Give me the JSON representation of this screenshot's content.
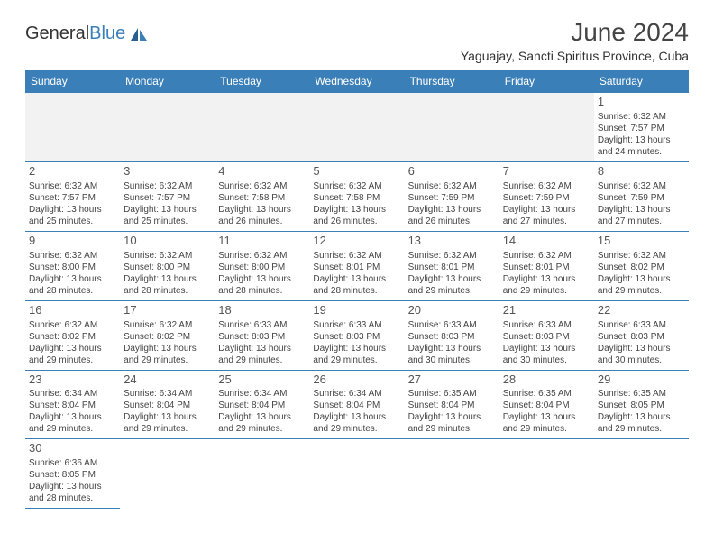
{
  "logo": {
    "name1": "General",
    "name2": "Blue"
  },
  "title": "June 2024",
  "location": "Yaguajay, Sancti Spiritus Province, Cuba",
  "dayHeaders": [
    "Sunday",
    "Monday",
    "Tuesday",
    "Wednesday",
    "Thursday",
    "Friday",
    "Saturday"
  ],
  "colors": {
    "headerBg": "#3b7fb8",
    "border": "#3b7fb8",
    "text": "#444"
  },
  "weeks": [
    [
      null,
      null,
      null,
      null,
      null,
      null,
      {
        "n": "1",
        "sr": "Sunrise: 6:32 AM",
        "ss": "Sunset: 7:57 PM",
        "dl": "Daylight: 13 hours and 24 minutes."
      }
    ],
    [
      {
        "n": "2",
        "sr": "Sunrise: 6:32 AM",
        "ss": "Sunset: 7:57 PM",
        "dl": "Daylight: 13 hours and 25 minutes."
      },
      {
        "n": "3",
        "sr": "Sunrise: 6:32 AM",
        "ss": "Sunset: 7:57 PM",
        "dl": "Daylight: 13 hours and 25 minutes."
      },
      {
        "n": "4",
        "sr": "Sunrise: 6:32 AM",
        "ss": "Sunset: 7:58 PM",
        "dl": "Daylight: 13 hours and 26 minutes."
      },
      {
        "n": "5",
        "sr": "Sunrise: 6:32 AM",
        "ss": "Sunset: 7:58 PM",
        "dl": "Daylight: 13 hours and 26 minutes."
      },
      {
        "n": "6",
        "sr": "Sunrise: 6:32 AM",
        "ss": "Sunset: 7:59 PM",
        "dl": "Daylight: 13 hours and 26 minutes."
      },
      {
        "n": "7",
        "sr": "Sunrise: 6:32 AM",
        "ss": "Sunset: 7:59 PM",
        "dl": "Daylight: 13 hours and 27 minutes."
      },
      {
        "n": "8",
        "sr": "Sunrise: 6:32 AM",
        "ss": "Sunset: 7:59 PM",
        "dl": "Daylight: 13 hours and 27 minutes."
      }
    ],
    [
      {
        "n": "9",
        "sr": "Sunrise: 6:32 AM",
        "ss": "Sunset: 8:00 PM",
        "dl": "Daylight: 13 hours and 28 minutes."
      },
      {
        "n": "10",
        "sr": "Sunrise: 6:32 AM",
        "ss": "Sunset: 8:00 PM",
        "dl": "Daylight: 13 hours and 28 minutes."
      },
      {
        "n": "11",
        "sr": "Sunrise: 6:32 AM",
        "ss": "Sunset: 8:00 PM",
        "dl": "Daylight: 13 hours and 28 minutes."
      },
      {
        "n": "12",
        "sr": "Sunrise: 6:32 AM",
        "ss": "Sunset: 8:01 PM",
        "dl": "Daylight: 13 hours and 28 minutes."
      },
      {
        "n": "13",
        "sr": "Sunrise: 6:32 AM",
        "ss": "Sunset: 8:01 PM",
        "dl": "Daylight: 13 hours and 29 minutes."
      },
      {
        "n": "14",
        "sr": "Sunrise: 6:32 AM",
        "ss": "Sunset: 8:01 PM",
        "dl": "Daylight: 13 hours and 29 minutes."
      },
      {
        "n": "15",
        "sr": "Sunrise: 6:32 AM",
        "ss": "Sunset: 8:02 PM",
        "dl": "Daylight: 13 hours and 29 minutes."
      }
    ],
    [
      {
        "n": "16",
        "sr": "Sunrise: 6:32 AM",
        "ss": "Sunset: 8:02 PM",
        "dl": "Daylight: 13 hours and 29 minutes."
      },
      {
        "n": "17",
        "sr": "Sunrise: 6:32 AM",
        "ss": "Sunset: 8:02 PM",
        "dl": "Daylight: 13 hours and 29 minutes."
      },
      {
        "n": "18",
        "sr": "Sunrise: 6:33 AM",
        "ss": "Sunset: 8:03 PM",
        "dl": "Daylight: 13 hours and 29 minutes."
      },
      {
        "n": "19",
        "sr": "Sunrise: 6:33 AM",
        "ss": "Sunset: 8:03 PM",
        "dl": "Daylight: 13 hours and 29 minutes."
      },
      {
        "n": "20",
        "sr": "Sunrise: 6:33 AM",
        "ss": "Sunset: 8:03 PM",
        "dl": "Daylight: 13 hours and 30 minutes."
      },
      {
        "n": "21",
        "sr": "Sunrise: 6:33 AM",
        "ss": "Sunset: 8:03 PM",
        "dl": "Daylight: 13 hours and 30 minutes."
      },
      {
        "n": "22",
        "sr": "Sunrise: 6:33 AM",
        "ss": "Sunset: 8:03 PM",
        "dl": "Daylight: 13 hours and 30 minutes."
      }
    ],
    [
      {
        "n": "23",
        "sr": "Sunrise: 6:34 AM",
        "ss": "Sunset: 8:04 PM",
        "dl": "Daylight: 13 hours and 29 minutes."
      },
      {
        "n": "24",
        "sr": "Sunrise: 6:34 AM",
        "ss": "Sunset: 8:04 PM",
        "dl": "Daylight: 13 hours and 29 minutes."
      },
      {
        "n": "25",
        "sr": "Sunrise: 6:34 AM",
        "ss": "Sunset: 8:04 PM",
        "dl": "Daylight: 13 hours and 29 minutes."
      },
      {
        "n": "26",
        "sr": "Sunrise: 6:34 AM",
        "ss": "Sunset: 8:04 PM",
        "dl": "Daylight: 13 hours and 29 minutes."
      },
      {
        "n": "27",
        "sr": "Sunrise: 6:35 AM",
        "ss": "Sunset: 8:04 PM",
        "dl": "Daylight: 13 hours and 29 minutes."
      },
      {
        "n": "28",
        "sr": "Sunrise: 6:35 AM",
        "ss": "Sunset: 8:04 PM",
        "dl": "Daylight: 13 hours and 29 minutes."
      },
      {
        "n": "29",
        "sr": "Sunrise: 6:35 AM",
        "ss": "Sunset: 8:05 PM",
        "dl": "Daylight: 13 hours and 29 minutes."
      }
    ],
    [
      {
        "n": "30",
        "sr": "Sunrise: 6:36 AM",
        "ss": "Sunset: 8:05 PM",
        "dl": "Daylight: 13 hours and 28 minutes."
      },
      null,
      null,
      null,
      null,
      null,
      null
    ]
  ]
}
